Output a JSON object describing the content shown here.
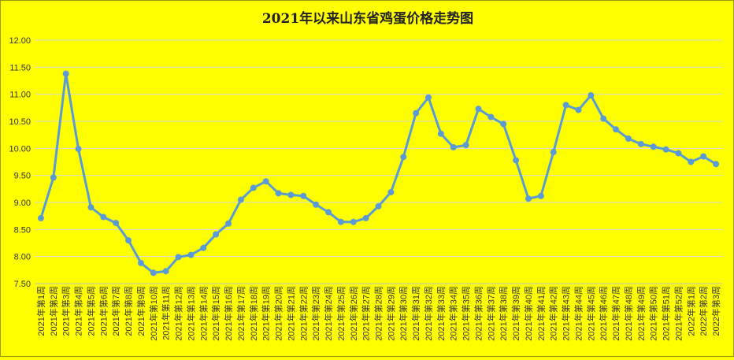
{
  "chart_data": {
    "type": "line",
    "title": "2021年以来山东省鸡蛋价格走势图",
    "xlabel": "",
    "ylabel": "",
    "ylim": [
      7.5,
      12.0
    ],
    "yticks": [
      "7.50",
      "8.00",
      "8.50",
      "9.00",
      "9.50",
      "10.00",
      "10.50",
      "11.00",
      "11.50",
      "12.00"
    ],
    "grid": true,
    "legend": "none",
    "colors": {
      "background": "#ffff00",
      "line": "#5b9bd5",
      "grid": "#d9d9d9",
      "text": "#333333"
    },
    "categories": [
      "2021年第1周",
      "2021年第2周",
      "2021年第3周",
      "2021年第4周",
      "2021年第5周",
      "2021年第6周",
      "2021年第7周",
      "2021年第8周",
      "2021年第9周",
      "2021年第10周",
      "2021年第11周",
      "2021年第12周",
      "2021年第13周",
      "2021年第14周",
      "2021年第15周",
      "2021年第16周",
      "2021年第17周",
      "2021年第18周",
      "2021年第19周",
      "2021年第20周",
      "2021年第21周",
      "2021年第22周",
      "2021年第23周",
      "2021年第24周",
      "2021年第25周",
      "2021年第26周",
      "2021年第27周",
      "2021年第28周",
      "2021年第29周",
      "2021年第30周",
      "2021年第31周",
      "2021年第32周",
      "2021年第33周",
      "2021年第34周",
      "2021年第35周",
      "2021年第36周",
      "2021年第37周",
      "2021年第38周",
      "2021年第39周",
      "2021年第40周",
      "2021年第41周",
      "2021年第42周",
      "2021年第43周",
      "2021年第44周",
      "2021年第45周",
      "2021年第46周",
      "2021年第47周",
      "2021年第48周",
      "2021年第49周",
      "2021年第50周",
      "2021年第51周",
      "2021年第52周",
      "2022年第1周",
      "2022年第2周",
      "2022年第3周"
    ],
    "series": [
      {
        "values": [
          8.71,
          9.46,
          11.38,
          9.99,
          8.91,
          8.73,
          8.62,
          8.3,
          7.88,
          7.7,
          7.73,
          7.99,
          8.03,
          8.16,
          8.41,
          8.61,
          9.05,
          9.27,
          9.39,
          9.17,
          9.14,
          9.12,
          8.96,
          8.82,
          8.64,
          8.64,
          8.71,
          8.93,
          9.19,
          9.84,
          10.65,
          10.94,
          10.27,
          10.02,
          10.06,
          10.73,
          10.58,
          10.45,
          9.78,
          9.07,
          9.12,
          9.93,
          10.8,
          10.71,
          10.98,
          10.55,
          10.35,
          10.18,
          10.08,
          10.03,
          9.98,
          9.91,
          9.75,
          9.85,
          9.71
        ]
      }
    ]
  }
}
